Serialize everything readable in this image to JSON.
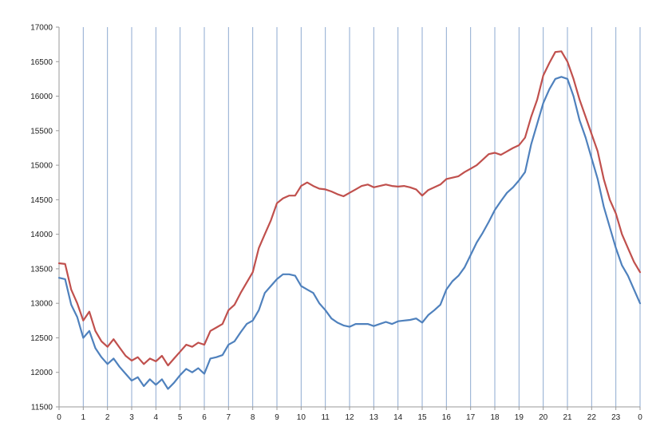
{
  "chart_data": {
    "type": "line",
    "title": "",
    "xlabel": "",
    "ylabel": "",
    "ylim": [
      11500,
      17000
    ],
    "y_ticks": [
      11500,
      12000,
      12500,
      13000,
      13500,
      14000,
      14500,
      15000,
      15500,
      16000,
      16500,
      17000
    ],
    "x_tick_labels": [
      "0",
      "1",
      "2",
      "3",
      "4",
      "5",
      "6",
      "7",
      "8",
      "9",
      "10",
      "11",
      "12",
      "13",
      "14",
      "15",
      "16",
      "17",
      "18",
      "19",
      "20",
      "21",
      "22",
      "23",
      "0"
    ],
    "grid": {
      "vertical": true,
      "horizontal": false
    },
    "legend": "none",
    "x": [
      0,
      0.25,
      0.5,
      0.75,
      1,
      1.25,
      1.5,
      1.75,
      2,
      2.25,
      2.5,
      2.75,
      3,
      3.25,
      3.5,
      3.75,
      4,
      4.25,
      4.5,
      4.75,
      5,
      5.25,
      5.5,
      5.75,
      6,
      6.25,
      6.5,
      6.75,
      7,
      7.25,
      7.5,
      7.75,
      8,
      8.25,
      8.5,
      8.75,
      9,
      9.25,
      9.5,
      9.75,
      10,
      10.25,
      10.5,
      10.75,
      11,
      11.25,
      11.5,
      11.75,
      12,
      12.25,
      12.5,
      12.75,
      13,
      13.25,
      13.5,
      13.75,
      14,
      14.25,
      14.5,
      14.75,
      15,
      15.25,
      15.5,
      15.75,
      16,
      16.25,
      16.5,
      16.75,
      17,
      17.25,
      17.5,
      17.75,
      18,
      18.25,
      18.5,
      18.75,
      19,
      19.25,
      19.5,
      19.75,
      20,
      20.25,
      20.5,
      20.75,
      21,
      21.25,
      21.5,
      21.75,
      22,
      22.25,
      22.5,
      22.75,
      23,
      23.25,
      23.5,
      23.75,
      24
    ],
    "series": [
      {
        "color": "#c0504d",
        "values": [
          13580,
          13570,
          13200,
          13000,
          12750,
          12880,
          12600,
          12450,
          12370,
          12480,
          12360,
          12240,
          12170,
          12220,
          12120,
          12200,
          12160,
          12240,
          12100,
          12200,
          12300,
          12400,
          12370,
          12430,
          12400,
          12600,
          12650,
          12700,
          12900,
          12980,
          13150,
          13300,
          13450,
          13800,
          14000,
          14200,
          14450,
          14520,
          14560,
          14560,
          14700,
          14750,
          14700,
          14660,
          14650,
          14620,
          14580,
          14550,
          14600,
          14650,
          14700,
          14720,
          14680,
          14700,
          14720,
          14700,
          14690,
          14700,
          14680,
          14650,
          14560,
          14640,
          14680,
          14720,
          14800,
          14820,
          14840,
          14900,
          14950,
          15000,
          15080,
          15160,
          15180,
          15150,
          15200,
          15250,
          15290,
          15400,
          15700,
          15950,
          16300,
          16480,
          16640,
          16650,
          16500,
          16250,
          15950,
          15700,
          15450,
          15200,
          14800,
          14500,
          14300,
          14000,
          13800,
          13600,
          13450
        ]
      },
      {
        "color": "#4f81bd",
        "values": [
          13370,
          13350,
          12980,
          12800,
          12500,
          12600,
          12350,
          12220,
          12120,
          12200,
          12080,
          11980,
          11880,
          11930,
          11800,
          11900,
          11820,
          11900,
          11760,
          11850,
          11960,
          12050,
          12000,
          12060,
          11980,
          12200,
          12220,
          12250,
          12400,
          12450,
          12580,
          12700,
          12750,
          12900,
          13150,
          13250,
          13350,
          13420,
          13420,
          13400,
          13250,
          13200,
          13150,
          13000,
          12900,
          12780,
          12720,
          12680,
          12660,
          12700,
          12700,
          12700,
          12670,
          12700,
          12730,
          12700,
          12740,
          12750,
          12760,
          12780,
          12720,
          12830,
          12900,
          12980,
          13200,
          13320,
          13400,
          13520,
          13700,
          13880,
          14020,
          14180,
          14350,
          14480,
          14600,
          14680,
          14780,
          14900,
          15300,
          15600,
          15900,
          16100,
          16250,
          16280,
          16250,
          16000,
          15650,
          15400,
          15100,
          14800,
          14400,
          14100,
          13800,
          13550,
          13400,
          13200,
          13000
        ]
      }
    ]
  }
}
